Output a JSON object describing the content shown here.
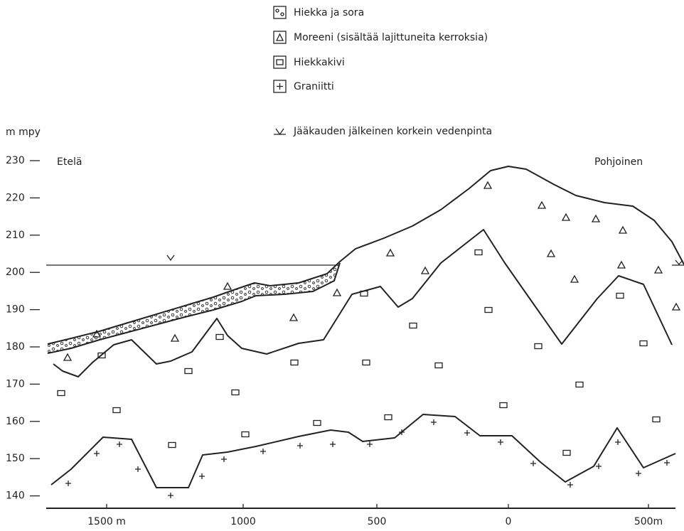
{
  "legend": [
    {
      "label": "Hiekka ja sora"
    },
    {
      "label": "Moreeni (sisältää lajittuneita kerroksia)"
    },
    {
      "label": "Hiekkakivi"
    },
    {
      "label": "Graniitti"
    },
    {
      "label": "Jääkauden jälkeinen korkein vedenpinta"
    }
  ],
  "y_axis": {
    "label": "m mpy",
    "ticks": [
      "230",
      "220",
      "210",
      "200",
      "190",
      "180",
      "170",
      "160",
      "150",
      "140"
    ]
  },
  "x_axis": {
    "ticks": [
      "1500 m",
      "1000",
      "500",
      "0",
      "500m"
    ]
  },
  "directions": {
    "left": "Etelä",
    "right": "Pohjoinen"
  }
}
